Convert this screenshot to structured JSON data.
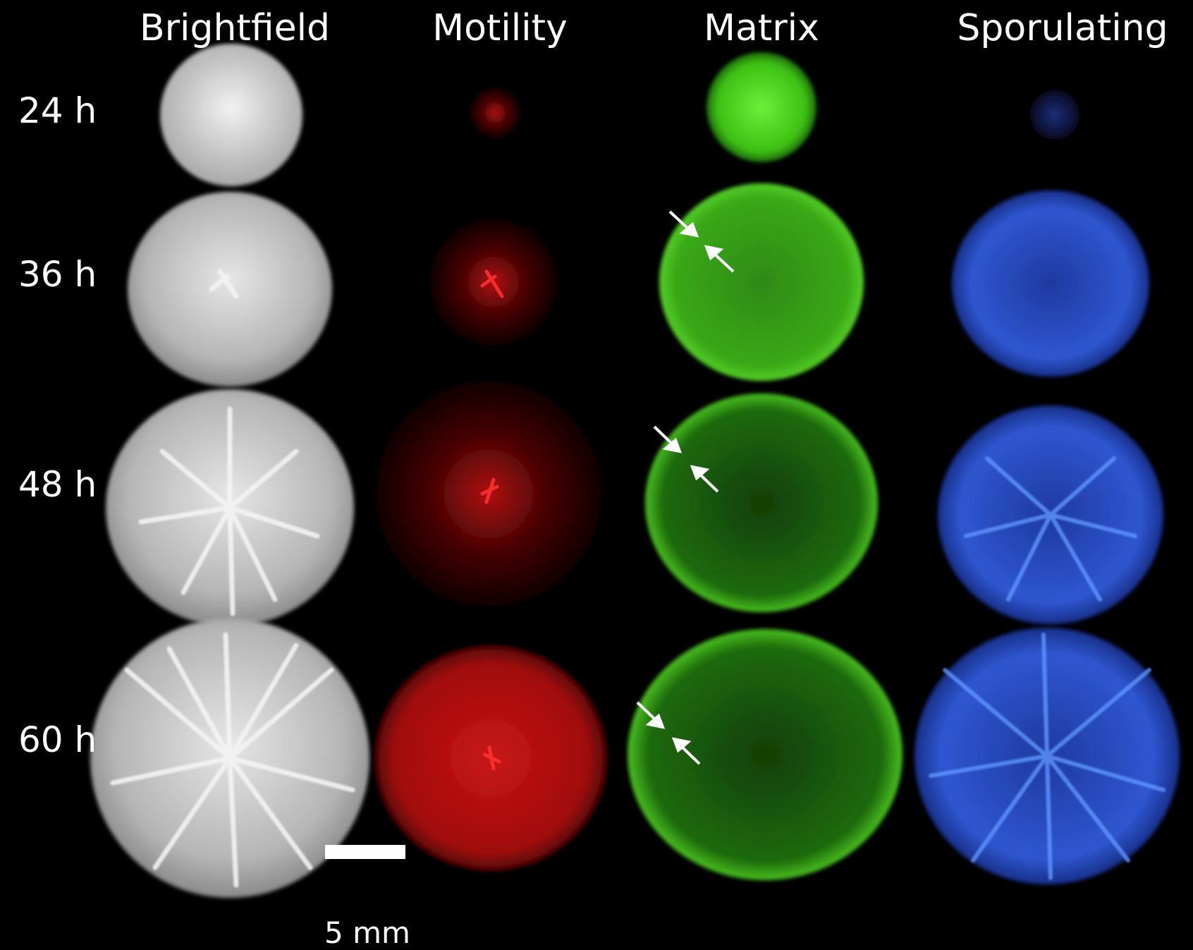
{
  "figure": {
    "columns": [
      {
        "label": "Brightfield",
        "channel": "brightfield",
        "color": "#d8d8d8"
      },
      {
        "label": "Motility",
        "channel": "motility",
        "color": "#e01818"
      },
      {
        "label": "Matrix",
        "channel": "matrix",
        "color": "#3fd01a"
      },
      {
        "label": "Sporulating",
        "channel": "sporulating",
        "color": "#3a6af0"
      }
    ],
    "rows": [
      {
        "label": "24 h"
      },
      {
        "label": "36 h"
      },
      {
        "label": "48 h"
      },
      {
        "label": "60 h"
      }
    ],
    "scale_bar": {
      "label": "5 mm"
    },
    "annotations": {
      "arrow_color": "#ffffff"
    }
  }
}
